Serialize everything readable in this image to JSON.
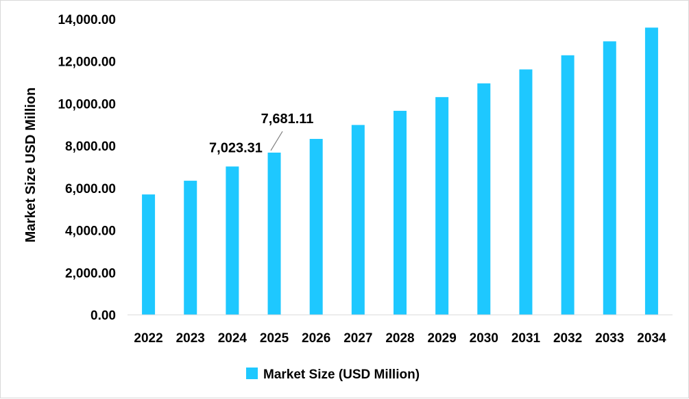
{
  "chart_data": {
    "type": "bar",
    "title": "",
    "xlabel": "",
    "ylabel": "Market Size USD Million",
    "categories": [
      "2022",
      "2023",
      "2024",
      "2025",
      "2026",
      "2027",
      "2028",
      "2029",
      "2030",
      "2031",
      "2032",
      "2033",
      "2034"
    ],
    "series": [
      {
        "name": "Market Size (USD Million)",
        "color": "#1ec8ff",
        "values": [
          5700,
          6350,
          7023.31,
          7681.11,
          8330,
          8990,
          9660,
          10310,
          10960,
          11620,
          12290,
          12950,
          13600
        ]
      }
    ],
    "yticks": [
      "0.00",
      "2,000.00",
      "4,000.00",
      "6,000.00",
      "8,000.00",
      "10,000.00",
      "12,000.00",
      "14,000.00"
    ],
    "ylim": [
      0,
      14000
    ],
    "grid": false,
    "legend": "bottom",
    "data_labels": [
      {
        "category": "2024",
        "text": "7,023.31"
      },
      {
        "category": "2025",
        "text": "7,681.11"
      }
    ]
  }
}
